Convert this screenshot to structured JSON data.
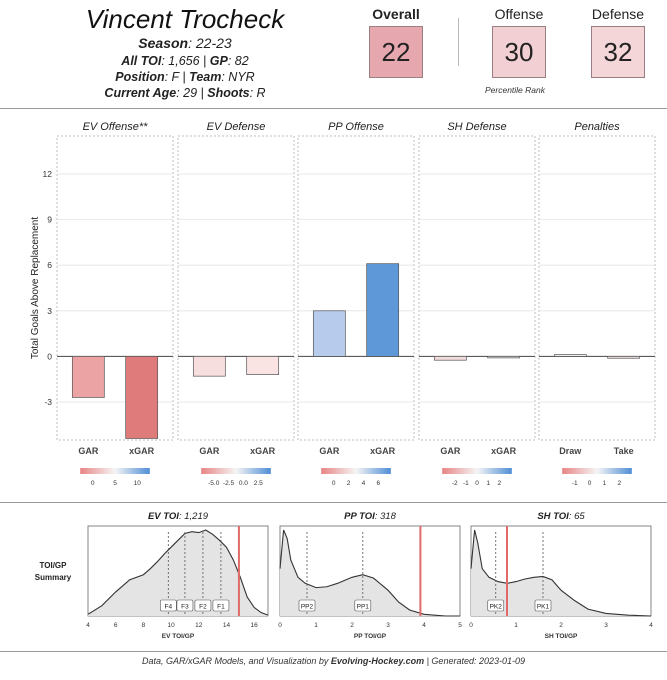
{
  "header": {
    "player_name": "Vincent Trocheck",
    "season_label": "Season",
    "season_value": ": 22-23",
    "toi_label": "All TOI",
    "toi_value": ": 1,656 | ",
    "gp_label": "GP",
    "gp_value": ": 82",
    "position_label": "Position",
    "position_value": ": F | ",
    "team_label": "Team",
    "team_value": ": NYR",
    "age_label": "Current Age",
    "age_value": ": 29 | ",
    "shoots_label": "Shoots",
    "shoots_value": ": R"
  },
  "ranks": {
    "overall_label": "Overall",
    "overall_value": "22",
    "overall_color": "#e6a8ae",
    "offense_label": "Offense",
    "offense_value": "30",
    "offense_color": "#f2cfd2",
    "defense_label": "Defense",
    "defense_value": "32",
    "defense_color": "#f4d6d8",
    "caption": "Percentile Rank"
  },
  "chart_data": [
    {
      "type": "bar",
      "ylabel": "Total Goals Above Replacement",
      "ylim": [
        -5.5,
        14.5
      ],
      "yticks": [
        -3,
        0,
        3,
        6,
        9,
        12
      ],
      "panels": [
        {
          "title": "EV Offense**",
          "categories": [
            "GAR",
            "xGAR"
          ],
          "values": [
            -2.7,
            -5.4
          ],
          "colors": [
            "#eba3a3",
            "#e07b7b"
          ],
          "legend_ticks": [
            "0",
            "5",
            "10"
          ]
        },
        {
          "title": "EV Defense",
          "categories": [
            "GAR",
            "xGAR"
          ],
          "values": [
            -1.3,
            -1.2
          ],
          "colors": [
            "#f7dede",
            "#f9e3e3"
          ],
          "legend_ticks": [
            "-5.0",
            "-2.5",
            "0.0",
            "2.5"
          ]
        },
        {
          "title": "PP Offense",
          "categories": [
            "GAR",
            "xGAR"
          ],
          "values": [
            3.0,
            6.1
          ],
          "colors": [
            "#b7cbec",
            "#5f98d8"
          ],
          "legend_ticks": [
            "0",
            "2",
            "4",
            "6"
          ]
        },
        {
          "title": "SH Defense",
          "categories": [
            "GAR",
            "xGAR"
          ],
          "values": [
            -0.25,
            -0.05
          ],
          "colors": [
            "#f3dcdc",
            "#e8e8e8"
          ],
          "legend_ticks": [
            "-2",
            "-1",
            "0",
            "1",
            "2"
          ]
        },
        {
          "title": "Penalties",
          "categories": [
            "Draw",
            "Take"
          ],
          "values": [
            0.12,
            -0.12
          ],
          "colors": [
            "#eeeeee",
            "#f5e3e3"
          ],
          "legend_ticks": [
            "-1",
            "0",
            "1",
            "2"
          ]
        }
      ]
    },
    {
      "type": "area",
      "ylabel": "TOI/GP Summary",
      "panels": [
        {
          "title_label": "EV TOI",
          "title_value": ": 1,219",
          "xlabel": "EV TOI/GP",
          "xlim": [
            4,
            17
          ],
          "xticks": [
            4,
            6,
            8,
            10,
            12,
            14,
            16
          ],
          "player_value": 14.9,
          "markers": [
            {
              "label": "F4",
              "x": 9.8
            },
            {
              "label": "F3",
              "x": 11.0
            },
            {
              "label": "F2",
              "x": 12.3
            },
            {
              "label": "F1",
              "x": 13.6
            }
          ],
          "density_x": [
            4,
            5,
            6,
            7,
            8,
            8.5,
            9,
            9.5,
            10,
            10.5,
            11,
            11.5,
            12,
            12.5,
            13,
            13.5,
            14,
            14.5,
            15,
            15.5,
            16,
            16.5,
            17
          ],
          "density_y": [
            0.02,
            0.12,
            0.28,
            0.42,
            0.48,
            0.55,
            0.63,
            0.72,
            0.8,
            0.88,
            0.96,
            0.98,
            0.97,
            1.0,
            0.95,
            0.88,
            0.8,
            0.65,
            0.45,
            0.22,
            0.1,
            0.04,
            0.01
          ]
        },
        {
          "title_label": "PP TOI",
          "title_value": ": 318",
          "xlabel": "PP TOI/GP",
          "xlim": [
            0,
            5
          ],
          "xticks": [
            0,
            1,
            2,
            3,
            4,
            5
          ],
          "player_value": 3.9,
          "markers": [
            {
              "label": "PP2",
              "x": 0.75
            },
            {
              "label": "PP1",
              "x": 2.3
            }
          ],
          "density_x": [
            0,
            0.1,
            0.2,
            0.3,
            0.5,
            0.7,
            1.0,
            1.3,
            1.6,
            2.0,
            2.3,
            2.6,
            3.0,
            3.3,
            3.6,
            4.0,
            4.3,
            4.6,
            5.0
          ],
          "density_y": [
            0.55,
            1.0,
            0.9,
            0.65,
            0.45,
            0.38,
            0.33,
            0.34,
            0.38,
            0.45,
            0.48,
            0.44,
            0.3,
            0.16,
            0.07,
            0.02,
            0.01,
            0.0,
            0.0
          ]
        },
        {
          "title_label": "SH TOI",
          "title_value": ": 65",
          "xlabel": "SH TOI/GP",
          "xlim": [
            0,
            4
          ],
          "xticks": [
            0,
            1,
            2,
            3,
            4
          ],
          "player_value": 0.8,
          "markers": [
            {
              "label": "PK2",
              "x": 0.55
            },
            {
              "label": "PK1",
              "x": 1.6
            }
          ],
          "density_x": [
            0,
            0.08,
            0.15,
            0.25,
            0.4,
            0.6,
            0.8,
            1.0,
            1.2,
            1.4,
            1.6,
            1.8,
            2.0,
            2.3,
            2.6,
            3.0,
            3.5,
            4.0
          ],
          "density_y": [
            0.55,
            1.0,
            0.85,
            0.55,
            0.45,
            0.4,
            0.38,
            0.4,
            0.43,
            0.45,
            0.46,
            0.42,
            0.3,
            0.18,
            0.08,
            0.03,
            0.01,
            0.0
          ]
        }
      ]
    }
  ],
  "footer": {
    "prefix": "Data, GAR/xGAR Models, and Visualization by ",
    "brand": "Evolving-Hockey.com",
    "suffix": " | Generated: 2023-01-09"
  }
}
